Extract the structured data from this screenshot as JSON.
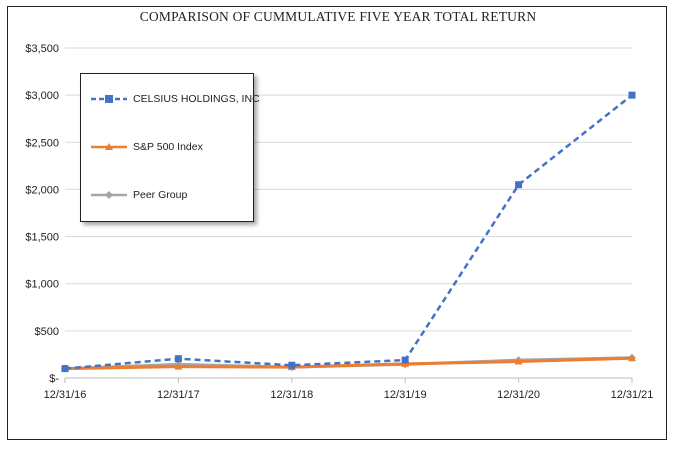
{
  "chart_data": {
    "type": "line",
    "title": "COMPARISON OF CUMMULATIVE FIVE YEAR TOTAL RETURN",
    "categories": [
      "12/31/16",
      "12/31/17",
      "12/31/18",
      "12/31/19",
      "12/31/20",
      "12/31/21"
    ],
    "ylim": [
      0,
      3500
    ],
    "yticks": [
      {
        "value": 0,
        "label": "$-"
      },
      {
        "value": 500,
        "label": "$500"
      },
      {
        "value": 1000,
        "label": "$1,000"
      },
      {
        "value": 1500,
        "label": "$1,500"
      },
      {
        "value": 2000,
        "label": "$2,000"
      },
      {
        "value": 2500,
        "label": "$2,500"
      },
      {
        "value": 3000,
        "label": "$3,000"
      },
      {
        "value": 3500,
        "label": "$3,500"
      }
    ],
    "grid": true,
    "legend_position": "top-left",
    "series": [
      {
        "name": "CELSIUS HOLDINGS, INC",
        "values": [
          100,
          205,
          135,
          190,
          2050,
          3000
        ],
        "color": "#4472C4",
        "dash": true,
        "marker": "square"
      },
      {
        "name": "S&P 500 Index",
        "values": [
          100,
          120,
          115,
          150,
          175,
          210
        ],
        "color": "#ED7D31",
        "dash": false,
        "marker": "triangle"
      },
      {
        "name": "Peer Group",
        "values": [
          100,
          145,
          115,
          145,
          190,
          215
        ],
        "color": "#A5A5A5",
        "dash": false,
        "marker": "diamond"
      }
    ]
  }
}
